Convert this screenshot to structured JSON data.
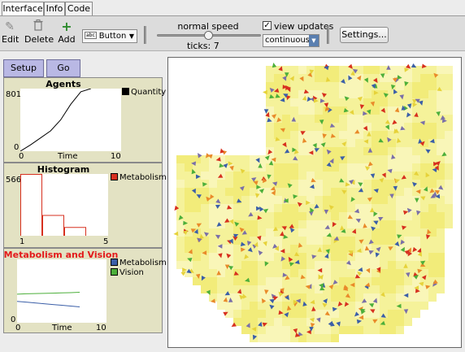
{
  "tabs": [
    {
      "label": "Interface",
      "active": true
    },
    {
      "label": "Info",
      "active": false
    },
    {
      "label": "Code",
      "active": false
    }
  ],
  "toolbar": {
    "edit_label": "Edit",
    "delete_label": "Delete",
    "add_label": "Add",
    "widget_type": "Button",
    "widget_type_icon_text": "abc",
    "speed_label": "normal speed",
    "speed_value": 0.5,
    "ticks_label": "ticks: 7",
    "view_updates_label": "view updates",
    "view_updates_checked": true,
    "check_mark": "✓",
    "update_mode": "continuous",
    "settings_label": "Settings..."
  },
  "buttons": {
    "setup_label": "Setup",
    "go_label": "Go"
  },
  "plots": {
    "agents": {
      "title": "Agents",
      "ymax": "801",
      "ymin": "0",
      "xmin": "0",
      "xmax": "10",
      "xlabel": "Time",
      "legend": [
        {
          "name": "Quantity",
          "color": "#000000"
        }
      ]
    },
    "histogram": {
      "title": "Histogram",
      "ymax": "566",
      "xmin": "1",
      "xmax": "5",
      "legend": [
        {
          "name": "Metabolism",
          "color": "#d7301f"
        }
      ]
    },
    "metvision": {
      "title": "Metabolism and Vision",
      "title_color": "#e31a1c",
      "ymax": "",
      "ymin": "0",
      "xmin": "0",
      "xmax": "10",
      "xlabel": "Time",
      "legend": [
        {
          "name": "Metabolism",
          "color": "#3b5fa8"
        },
        {
          "name": "Vision",
          "color": "#4caf3a"
        }
      ]
    }
  },
  "chart_data": [
    {
      "type": "line",
      "x": [
        0,
        1,
        2,
        3,
        4,
        5,
        6,
        7
      ],
      "series": [
        {
          "name": "Quantity",
          "values": [
            0,
            80,
            170,
            260,
            400,
            600,
            760,
            801
          ]
        }
      ],
      "xlim": [
        0,
        10
      ],
      "ylim": [
        0,
        801
      ]
    },
    {
      "type": "bar",
      "categories": [
        "1",
        "2",
        "3",
        "4",
        "5"
      ],
      "values": [
        566,
        190,
        80,
        0,
        0
      ],
      "xlim": [
        1,
        5
      ],
      "ylim": [
        0,
        566
      ]
    },
    {
      "type": "line",
      "x": [
        0,
        1,
        2,
        3,
        4,
        5,
        6,
        7
      ],
      "series": [
        {
          "name": "Metabolism",
          "values": [
            2.7,
            2.6,
            2.5,
            2.4,
            2.3,
            2.2,
            2.1,
            2.0
          ]
        },
        {
          "name": "Vision",
          "values": [
            3.6,
            3.65,
            3.68,
            3.7,
            3.73,
            3.76,
            3.8,
            3.85
          ]
        }
      ],
      "xlim": [
        0,
        10
      ],
      "ylim": [
        0,
        8
      ]
    }
  ],
  "world": {
    "background_color": "#f5f29a",
    "turtle_colors": [
      "#3b5fa8",
      "#4caf3a",
      "#d7301f",
      "#7a6fa8",
      "#e6d23a",
      "#e98a2a"
    ]
  }
}
